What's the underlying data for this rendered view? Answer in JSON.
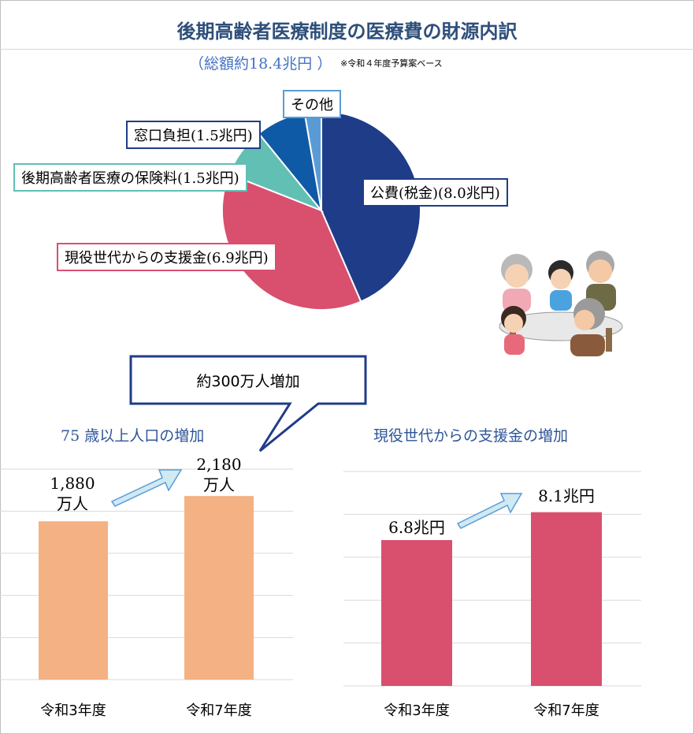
{
  "title": "後期高齢者医療制度の医療費の財源内訳",
  "subtitle": "（総額約18.4兆円 ）",
  "subtitle_note": "※令和４年度予算案ベース",
  "colors": {
    "title": "#2e4f7a",
    "public": "#1f3c88",
    "support": "#d94f6e",
    "premium": "#62bfb3",
    "copay": "#0f5aa6",
    "other": "#5b9bd5",
    "bar_population": "#f4b183",
    "bar_support": "#d94f6e",
    "callout_border": "#1f3c88",
    "arrow_fill": "#cfeaf2"
  },
  "chart_data": [
    {
      "type": "pie",
      "slices": [
        {
          "label": "公費(税金)(8.0兆円)",
          "value": 8.0,
          "color": "#1f3c88"
        },
        {
          "label": "現役世代からの支援金(6.9兆円)",
          "value": 6.9,
          "color": "#d94f6e"
        },
        {
          "label": "後期高齢者医療の保険料(1.5兆円)",
          "value": 1.5,
          "color": "#62bfb3"
        },
        {
          "label": "窓口負担(1.5兆円)",
          "value": 1.5,
          "color": "#0f5aa6"
        },
        {
          "label": "その他",
          "value": 0.5,
          "color": "#5b9bd5"
        }
      ]
    },
    {
      "type": "bar",
      "title": "75 歳以上人口の増加",
      "categories": [
        "令和3年度",
        "令和7年度"
      ],
      "values": [
        1880,
        2180
      ],
      "value_labels": [
        [
          "1,880",
          "万人"
        ],
        [
          "2,180",
          "万人"
        ]
      ],
      "ylim": [
        0,
        2500
      ],
      "grid": true
    },
    {
      "type": "bar",
      "title": "現役世代からの支援金の増加",
      "categories": [
        "令和3年度",
        "令和7年度"
      ],
      "values": [
        6.8,
        8.1
      ],
      "value_labels": [
        [
          "6.8兆円"
        ],
        [
          "8.1兆円"
        ]
      ],
      "ylim": [
        0,
        10
      ],
      "grid": true
    }
  ],
  "callout": "約300万人増加"
}
